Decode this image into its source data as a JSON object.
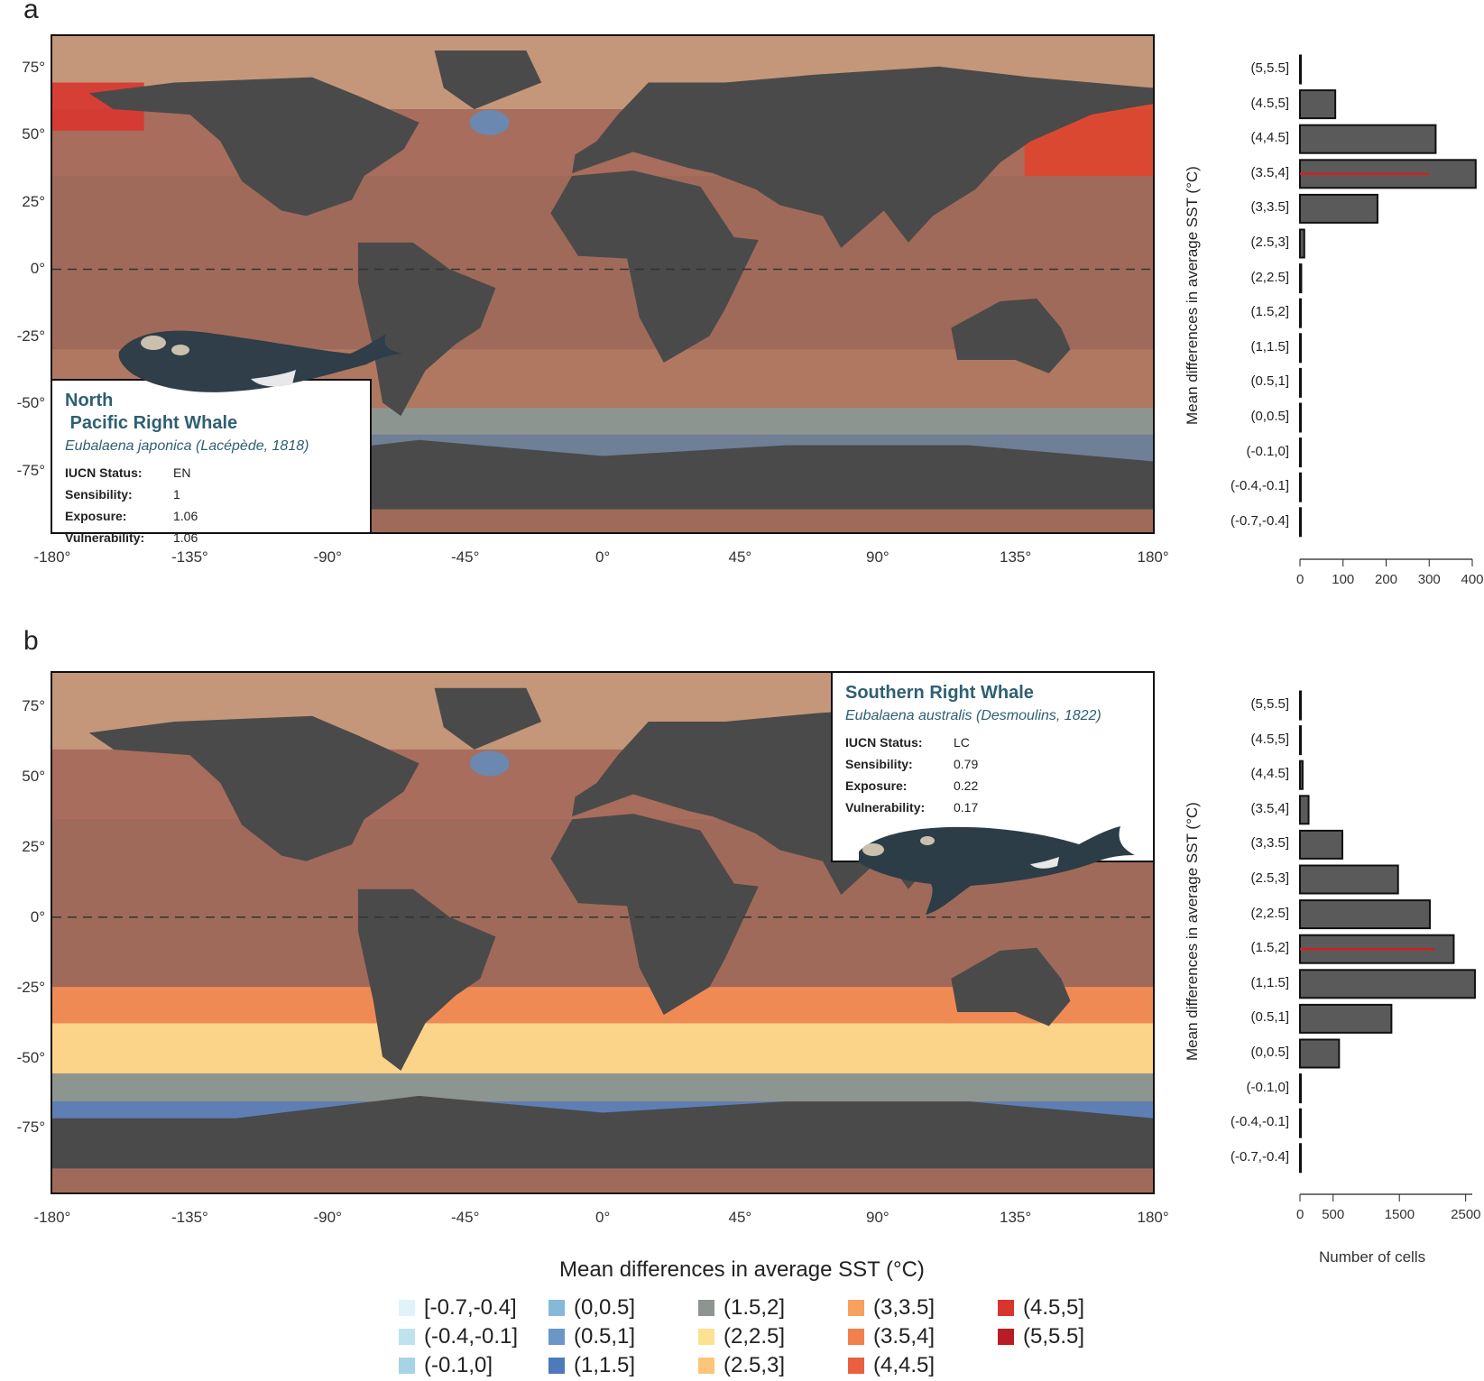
{
  "panels": [
    {
      "letter": "a",
      "species_common": "North\n Pacific Right Whale",
      "species_scientific": "Eubalaena japonica (Lacépède, 1818)",
      "iucn_label": "IUCN Status:",
      "iucn_value": "EN",
      "sens_label": "Sensibility:",
      "sens_value": "1",
      "exp_label": "Exposure:",
      "exp_value": "1.06",
      "vul_label": "Vulnerability:",
      "vul_value": "1.06"
    },
    {
      "letter": "b",
      "species_common": "Southern Right Whale",
      "species_scientific": "Eubalaena australis (Desmoulins, 1822)",
      "iucn_label": "IUCN Status:",
      "iucn_value": "LC",
      "sens_label": "Sensibility:",
      "sens_value": "0.79",
      "exp_label": "Exposure:",
      "exp_value": "0.22",
      "vul_label": "Vulnerability:",
      "vul_value": "0.17"
    }
  ],
  "map_axes": {
    "x_ticks": [
      "-180°",
      "-135°",
      "-90°",
      "-45°",
      "0°",
      "45°",
      "90°",
      "135°",
      "180°"
    ],
    "y_ticks": [
      "75°",
      "50°",
      "25°",
      "0°",
      "-25°",
      "-50°",
      "-75°"
    ]
  },
  "histogram": {
    "ylabel": "Mean differences in average SST (°C)",
    "xlabel": "Number of cells",
    "categories": [
      "(5,5.5]",
      "(4.5,5]",
      "(4,4.5]",
      "(3.5,4]",
      "(3,3.5]",
      "(2.5,3]",
      "(2,2.5]",
      "(1.5,2]",
      "(1,1.5]",
      "(0.5,1]",
      "(0,0.5]",
      "(-0.1,0]",
      "(-0.4,-0.1]",
      "(-0.7,-0.4]"
    ]
  },
  "chart_data": [
    {
      "type": "bar",
      "orientation": "horizontal",
      "categories": [
        "(5,5.5]",
        "(4.5,5]",
        "(4,4.5]",
        "(3.5,4]",
        "(3,3.5]",
        "(2.5,3]",
        "(2,2.5]",
        "(1.5,2]",
        "(1,1.5]",
        "(0.5,1]",
        "(0,0.5]",
        "(-0.1,0]",
        "(-0.4,-0.1]",
        "(-0.7,-0.4]"
      ],
      "values": [
        2,
        82,
        315,
        408,
        180,
        10,
        3,
        1,
        1,
        1,
        1,
        1,
        1,
        1
      ],
      "mean_line_category": "(3.5,4]",
      "mean_line_value": 300,
      "xlim": [
        0,
        400
      ],
      "x_ticks": [
        0,
        100,
        200,
        300,
        400
      ],
      "ylabel": "Mean differences in average SST (°C)"
    },
    {
      "type": "bar",
      "orientation": "horizontal",
      "categories": [
        "(5,5.5]",
        "(4.5,5]",
        "(4,4.5]",
        "(3.5,4]",
        "(3,3.5]",
        "(2.5,3]",
        "(2,2.5]",
        "(1.5,2]",
        "(1,1.5]",
        "(0.5,1]",
        "(0,0.5]",
        "(-0.1,0]",
        "(-0.4,-0.1]",
        "(-0.7,-0.4]"
      ],
      "values": [
        5,
        5,
        40,
        130,
        640,
        1480,
        1960,
        2320,
        2640,
        1380,
        590,
        10,
        10,
        5
      ],
      "mean_line_category": "(1.5,2]",
      "mean_line_value": 2030,
      "xlim": [
        0,
        2600
      ],
      "x_ticks": [
        0,
        500,
        1500,
        2500
      ],
      "xlabel": "Number of cells",
      "ylabel": "Mean differences in average SST (°C)"
    }
  ],
  "legend": {
    "title": "Mean differences in average SST (°C)",
    "items": [
      {
        "label": "[-0.7,-0.4]",
        "color": "#dff3f8"
      },
      {
        "label": "(-0.4,-0.1]",
        "color": "#bfe3ee"
      },
      {
        "label": "(-0.1,0]",
        "color": "#a6d4e6"
      },
      {
        "label": "(0,0.5]",
        "color": "#86b8dc"
      },
      {
        "label": "(0.5,1]",
        "color": "#6a97c8"
      },
      {
        "label": "(1,1.5]",
        "color": "#4e79bb"
      },
      {
        "label": "(1.5,2]",
        "color": "#8d9590"
      },
      {
        "label": "(2,2.5]",
        "color": "#fde191"
      },
      {
        "label": "(2.5,3]",
        "color": "#fcc57a"
      },
      {
        "label": "(3,3.5]",
        "color": "#f8a05e"
      },
      {
        "label": "(3.5,4]",
        "color": "#f2804c"
      },
      {
        "label": "(4,4.5]",
        "color": "#e8603d"
      },
      {
        "label": "(4.5,5]",
        "color": "#d8352e"
      },
      {
        "label": "(5,5.5]",
        "color": "#b81d24"
      }
    ]
  }
}
